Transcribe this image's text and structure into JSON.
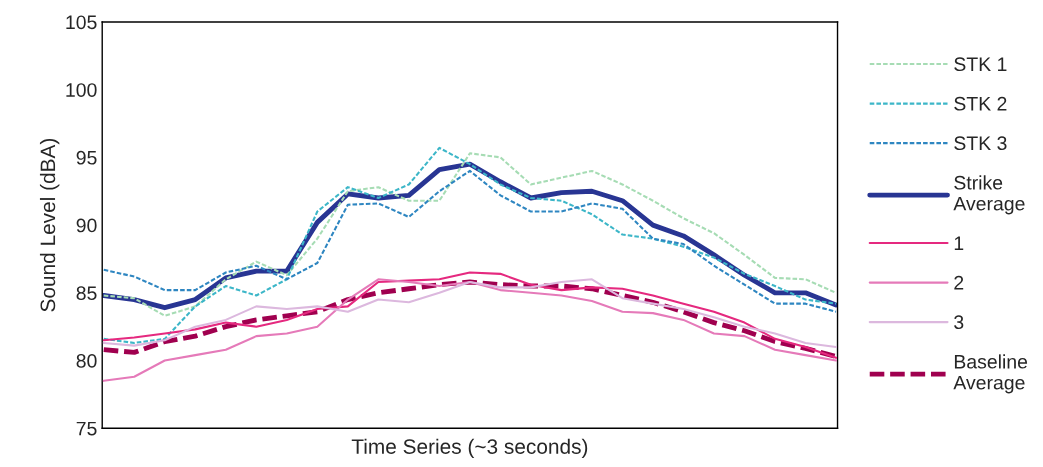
{
  "chart_data": {
    "type": "line",
    "xlabel": "Time Series (~3 seconds)",
    "ylabel": "Sound Level (dBA)",
    "categories": [
      null,
      null,
      null,
      null,
      null,
      null,
      null,
      null,
      null,
      null,
      null,
      null,
      null,
      null,
      null,
      null,
      null,
      null,
      null,
      null,
      null,
      null,
      null,
      null,
      null
    ],
    "ylim": [
      75,
      105
    ],
    "yticks": [
      75,
      80,
      85,
      90,
      95,
      100,
      105
    ],
    "grid": false,
    "legend": "right",
    "marker": "none",
    "series": [
      {
        "name": "STK 1",
        "color": "#a6dcb4",
        "line_style": "dashed",
        "values": [
          84.8,
          84.6,
          83.3,
          84.0,
          86.0,
          87.3,
          86.3,
          89.0,
          92.5,
          92.8,
          91.8,
          91.8,
          95.3,
          95.0,
          93.0,
          93.5,
          94.0,
          93.0,
          91.8,
          90.5,
          89.4,
          87.8,
          86.1,
          86.0,
          85.0
        ]
      },
      {
        "name": "STK 2",
        "color": "#3cb6c8",
        "line_style": "dashed",
        "values": [
          81.6,
          81.3,
          81.6,
          84.0,
          85.5,
          84.8,
          86.0,
          91.0,
          92.8,
          92.0,
          93.0,
          95.7,
          94.5,
          93.0,
          92.0,
          91.8,
          90.8,
          89.3,
          89.0,
          88.4,
          87.6,
          86.4,
          85.5,
          84.5,
          84.2
        ]
      },
      {
        "name": "STK 3",
        "color": "#2e86c1",
        "line_style": "dashed",
        "values": [
          86.7,
          86.2,
          85.2,
          85.2,
          86.5,
          87.0,
          86.0,
          87.2,
          91.5,
          91.6,
          90.6,
          92.5,
          94.0,
          92.2,
          91.0,
          91.0,
          91.6,
          91.2,
          89.0,
          88.6,
          87.0,
          85.6,
          84.2,
          84.2,
          83.6
        ]
      },
      {
        "name": "Strike Average",
        "color": "#283593",
        "line_style": "solid",
        "values": [
          84.8,
          84.5,
          83.9,
          84.5,
          86.1,
          86.6,
          86.6,
          90.2,
          92.3,
          92.0,
          92.2,
          94.1,
          94.5,
          93.2,
          92.0,
          92.4,
          92.5,
          91.8,
          90.0,
          89.2,
          87.8,
          86.3,
          85.0,
          85.0,
          84.1
        ]
      },
      {
        "name": "1",
        "color": "#e5297f",
        "line_style": "solid",
        "values": [
          81.5,
          81.7,
          82.0,
          82.3,
          82.8,
          82.5,
          83.0,
          83.8,
          84.0,
          85.8,
          85.9,
          86.0,
          86.5,
          86.4,
          85.6,
          85.2,
          85.4,
          85.3,
          84.8,
          84.2,
          83.6,
          82.8,
          81.6,
          81.0,
          80.2
        ]
      },
      {
        "name": "2",
        "color": "#e57ab9",
        "line_style": "solid",
        "values": [
          78.5,
          78.8,
          80.0,
          80.4,
          80.8,
          81.8,
          82.0,
          82.5,
          84.5,
          86.0,
          85.8,
          85.5,
          85.8,
          85.2,
          85.0,
          84.8,
          84.4,
          83.6,
          83.5,
          83.0,
          82.0,
          81.8,
          80.8,
          80.4,
          80.0
        ]
      },
      {
        "name": "3",
        "color": "#dcb8de",
        "line_style": "solid",
        "values": [
          81.3,
          81.1,
          81.5,
          82.5,
          83.0,
          84.0,
          83.8,
          84.0,
          83.6,
          84.5,
          84.3,
          85.0,
          85.8,
          85.4,
          85.4,
          85.8,
          86.0,
          84.6,
          84.2,
          83.8,
          83.2,
          82.5,
          82.0,
          81.3,
          81.0
        ]
      },
      {
        "name": "Baseline Average",
        "color": "#a0004f",
        "line_style": "dashed",
        "values": [
          80.8,
          80.6,
          81.4,
          81.8,
          82.5,
          83.0,
          83.3,
          83.6,
          84.5,
          85.0,
          85.3,
          85.6,
          85.8,
          85.6,
          85.5,
          85.5,
          85.3,
          84.8,
          84.3,
          83.6,
          82.8,
          82.2,
          81.4,
          80.9,
          80.3
        ]
      }
    ]
  }
}
